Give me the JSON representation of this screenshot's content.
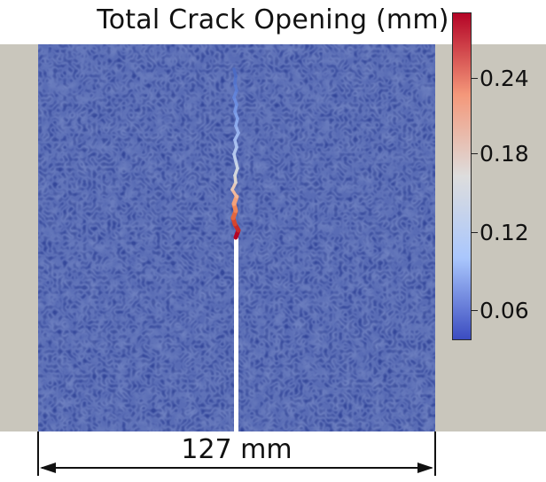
{
  "title": "Total Crack Opening (mm)",
  "colorbar": {
    "ticks": [
      "0.24",
      "0.18",
      "0.12",
      "0.06"
    ],
    "tick_values": [
      0.24,
      0.18,
      0.12,
      0.06
    ],
    "range": [
      0.0,
      0.265
    ],
    "colors": [
      "#3b4cc0",
      "#aac7fd",
      "#dddddd",
      "#f4987a",
      "#b40426"
    ]
  },
  "specimen_color": "#34479a",
  "background_color": "#c9c6bc",
  "dimension": {
    "label": "127 mm"
  }
}
